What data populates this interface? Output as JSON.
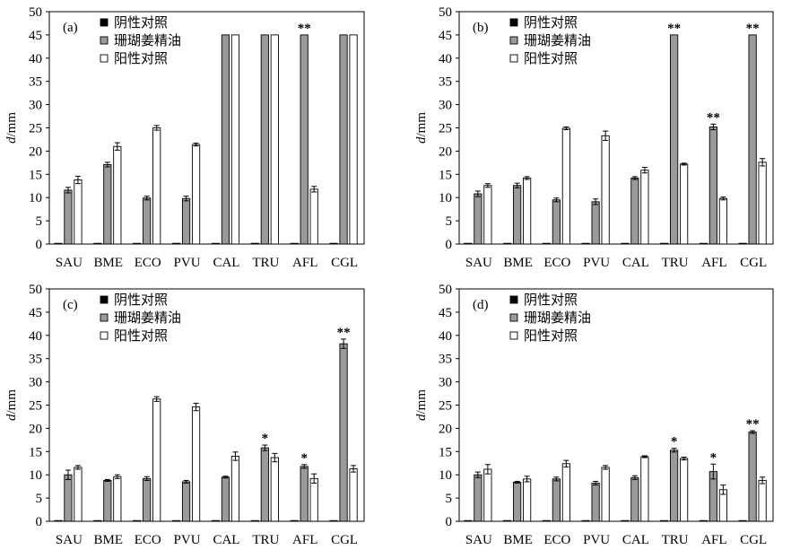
{
  "chart_data": [
    {
      "panel_label": "(a)",
      "type": "bar",
      "categories": [
        "SAU",
        "BME",
        "ECO",
        "PVU",
        "CAL",
        "TRU",
        "AFL",
        "CGL"
      ],
      "series": [
        {
          "name": "阴性对照",
          "values": [
            0,
            0,
            0,
            0,
            0,
            0,
            0,
            0
          ],
          "errors": [
            0,
            0,
            0,
            0,
            0,
            0,
            0,
            0
          ]
        },
        {
          "name": "珊瑚姜精油",
          "values": [
            11.6,
            17.1,
            9.9,
            9.8,
            45,
            45,
            45,
            45
          ],
          "errors": [
            0.6,
            0.5,
            0.4,
            0.5,
            0,
            0,
            0,
            0
          ]
        },
        {
          "name": "阳性对照",
          "values": [
            13.8,
            21.0,
            25.0,
            21.4,
            45,
            45,
            11.8,
            45
          ],
          "errors": [
            0.8,
            0.8,
            0.5,
            0.3,
            0,
            0,
            0.6,
            0
          ]
        }
      ],
      "significance": [
        "",
        "",
        "",
        "",
        "",
        "",
        "**",
        ""
      ],
      "ylabel_italic": "d",
      "ylabel_unit": "/mm",
      "ylim": [
        0,
        50
      ],
      "yticks": [
        0,
        5,
        10,
        15,
        20,
        25,
        30,
        35,
        40,
        45,
        50
      ],
      "legend_position": "top-left"
    },
    {
      "panel_label": "(b)",
      "type": "bar",
      "categories": [
        "SAU",
        "BME",
        "ECO",
        "PVU",
        "CAL",
        "TRU",
        "AFL",
        "CGL"
      ],
      "series": [
        {
          "name": "阴性对照",
          "values": [
            0,
            0,
            0,
            0,
            0,
            0,
            0,
            0
          ],
          "errors": [
            0,
            0,
            0,
            0,
            0,
            0,
            0,
            0
          ]
        },
        {
          "name": "珊瑚姜精油",
          "values": [
            10.8,
            12.6,
            9.5,
            9.1,
            14.2,
            45,
            25.2,
            45
          ],
          "errors": [
            0.6,
            0.5,
            0.4,
            0.6,
            0.3,
            0,
            0.6,
            0
          ]
        },
        {
          "name": "阳性对照",
          "values": [
            12.6,
            14.2,
            24.9,
            23.3,
            15.9,
            17.2,
            9.8,
            17.6
          ],
          "errors": [
            0.4,
            0.3,
            0.3,
            1.0,
            0.6,
            0.2,
            0.3,
            0.8
          ]
        }
      ],
      "significance": [
        "",
        "",
        "",
        "",
        "",
        "**",
        "**",
        "**"
      ],
      "ylabel_italic": "d",
      "ylabel_unit": "/mm",
      "ylim": [
        0,
        50
      ],
      "yticks": [
        0,
        5,
        10,
        15,
        20,
        25,
        30,
        35,
        40,
        45,
        50
      ],
      "legend_position": "top-left"
    },
    {
      "panel_label": "(c)",
      "type": "bar",
      "categories": [
        "SAU",
        "BME",
        "ECO",
        "PVU",
        "CAL",
        "TRU",
        "AFL",
        "CGL"
      ],
      "series": [
        {
          "name": "阴性对照",
          "values": [
            0,
            0,
            0,
            0,
            0,
            0,
            0,
            0
          ],
          "errors": [
            0,
            0,
            0,
            0,
            0,
            0,
            0,
            0
          ]
        },
        {
          "name": "珊瑚姜精油",
          "values": [
            10.0,
            8.8,
            9.2,
            8.5,
            9.5,
            15.8,
            11.8,
            38.2
          ],
          "errors": [
            1.0,
            0.2,
            0.4,
            0.3,
            0.2,
            0.6,
            0.4,
            1.0
          ]
        },
        {
          "name": "阳性对照",
          "values": [
            11.6,
            9.6,
            26.3,
            24.6,
            14.0,
            13.7,
            9.2,
            11.3
          ],
          "errors": [
            0.4,
            0.4,
            0.5,
            0.8,
            0.9,
            0.9,
            1.0,
            0.7
          ]
        }
      ],
      "significance": [
        "",
        "",
        "",
        "",
        "",
        "*",
        "*",
        "**"
      ],
      "ylabel_italic": "d",
      "ylabel_unit": "/mm",
      "ylim": [
        0,
        50
      ],
      "yticks": [
        0,
        5,
        10,
        15,
        20,
        25,
        30,
        35,
        40,
        45,
        50
      ],
      "legend_position": "top-left"
    },
    {
      "panel_label": "(d)",
      "type": "bar",
      "categories": [
        "SAU",
        "BME",
        "ECO",
        "PVU",
        "CAL",
        "TRU",
        "AFL",
        "CGL"
      ],
      "series": [
        {
          "name": "阴性对照",
          "values": [
            0,
            0,
            0,
            0,
            0,
            0,
            0,
            0
          ],
          "errors": [
            0,
            0,
            0,
            0,
            0,
            0,
            0,
            0
          ]
        },
        {
          "name": "珊瑚姜精油",
          "values": [
            10.0,
            8.4,
            9.1,
            8.2,
            9.4,
            15.3,
            10.7,
            19.2
          ],
          "errors": [
            0.6,
            0.2,
            0.4,
            0.4,
            0.4,
            0.4,
            1.6,
            0.3
          ]
        },
        {
          "name": "阳性对照",
          "values": [
            11.2,
            9.1,
            12.4,
            11.6,
            13.9,
            13.5,
            6.8,
            8.8
          ],
          "errors": [
            1.0,
            0.6,
            0.7,
            0.4,
            0.2,
            0.3,
            1.0,
            0.7
          ]
        }
      ],
      "significance": [
        "",
        "",
        "",
        "",
        "",
        "*",
        "*",
        "**"
      ],
      "ylabel_italic": "d",
      "ylabel_unit": "/mm",
      "ylim": [
        0,
        50
      ],
      "yticks": [
        0,
        5,
        10,
        15,
        20,
        25,
        30,
        35,
        40,
        45,
        50
      ],
      "legend_position": "top-left"
    }
  ],
  "colors": {
    "negative_control": "#000000",
    "essential_oil": "#9a9a9a",
    "positive_control": "#ffffff",
    "axis": "#000000"
  }
}
